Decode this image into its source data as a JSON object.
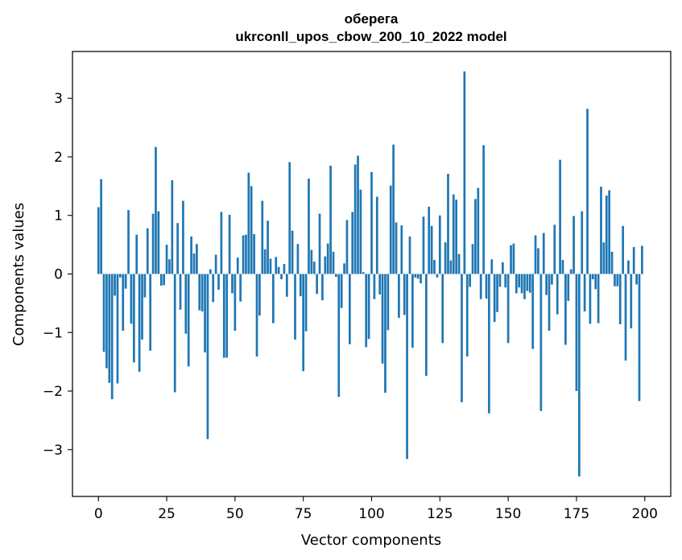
{
  "chart_data": {
    "type": "bar",
    "title": "оберега",
    "subtitle": "ukrconll_upos_cbow_200_10_2022 model",
    "xlabel": "Vector components",
    "ylabel": "Components values",
    "xlim": [
      -9.5,
      209.5
    ],
    "ylim": [
      -3.8,
      3.8
    ],
    "xticks": [
      0,
      25,
      50,
      75,
      100,
      125,
      150,
      175,
      200
    ],
    "yticks": [
      -3,
      -2,
      -1,
      0,
      1,
      2,
      3
    ],
    "ytick_labels": [
      "−3",
      "−2",
      "−1",
      "0",
      "1",
      "2",
      "3"
    ],
    "bar_color": "#1f77b4",
    "x": [
      0,
      1,
      2,
      3,
      4,
      5,
      6,
      7,
      8,
      9,
      10,
      11,
      12,
      13,
      14,
      15,
      16,
      17,
      18,
      19,
      20,
      21,
      22,
      23,
      24,
      25,
      26,
      27,
      28,
      29,
      30,
      31,
      32,
      33,
      34,
      35,
      36,
      37,
      38,
      39,
      40,
      41,
      42,
      43,
      44,
      45,
      46,
      47,
      48,
      49,
      50,
      51,
      52,
      53,
      54,
      55,
      56,
      57,
      58,
      59,
      60,
      61,
      62,
      63,
      64,
      65,
      66,
      67,
      68,
      69,
      70,
      71,
      72,
      73,
      74,
      75,
      76,
      77,
      78,
      79,
      80,
      81,
      82,
      83,
      84,
      85,
      86,
      87,
      88,
      89,
      90,
      91,
      92,
      93,
      94,
      95,
      96,
      97,
      98,
      99,
      100,
      101,
      102,
      103,
      104,
      105,
      106,
      107,
      108,
      109,
      110,
      111,
      112,
      113,
      114,
      115,
      116,
      117,
      118,
      119,
      120,
      121,
      122,
      123,
      124,
      125,
      126,
      127,
      128,
      129,
      130,
      131,
      132,
      133,
      134,
      135,
      136,
      137,
      138,
      139,
      140,
      141,
      142,
      143,
      144,
      145,
      146,
      147,
      148,
      149,
      150,
      151,
      152,
      153,
      154,
      155,
      156,
      157,
      158,
      159,
      160,
      161,
      162,
      163,
      164,
      165,
      166,
      167,
      168,
      169,
      170,
      171,
      172,
      173,
      174,
      175,
      176,
      177,
      178,
      179,
      180,
      181,
      182,
      183,
      184,
      185,
      186,
      187,
      188,
      189,
      190,
      191,
      192,
      193,
      194,
      195,
      196,
      197,
      198,
      199
    ],
    "values": [
      1.14,
      1.62,
      -1.33,
      -1.61,
      -1.86,
      -2.14,
      -0.37,
      -1.87,
      -0.06,
      -0.97,
      -0.25,
      1.09,
      -0.85,
      -1.51,
      0.67,
      -1.67,
      -1.12,
      -0.4,
      0.78,
      -1.31,
      1.03,
      2.17,
      1.07,
      -0.2,
      -0.19,
      0.5,
      0.25,
      1.6,
      -2.02,
      0.87,
      -0.61,
      1.25,
      -1.02,
      -1.58,
      0.64,
      0.35,
      0.51,
      -0.62,
      -0.64,
      -1.34,
      -2.82,
      0.08,
      -0.48,
      0.33,
      -0.27,
      1.06,
      -1.43,
      -1.43,
      1.01,
      -0.33,
      -0.97,
      0.28,
      -0.47,
      0.66,
      0.67,
      1.73,
      1.5,
      0.68,
      -1.41,
      -0.71,
      1.25,
      0.42,
      0.91,
      0.26,
      -0.84,
      0.29,
      0.12,
      -0.09,
      0.17,
      -0.39,
      1.91,
      0.74,
      -1.12,
      0.51,
      -0.38,
      -1.66,
      -0.98,
      1.63,
      0.41,
      0.21,
      -0.34,
      1.03,
      -0.45,
      0.3,
      0.52,
      1.85,
      0.38,
      -0.05,
      -2.1,
      -0.58,
      0.18,
      0.92,
      -1.2,
      1.06,
      1.87,
      2.02,
      1.44,
      0.03,
      -1.25,
      -1.11,
      1.74,
      -0.43,
      1.32,
      -0.35,
      -1.53,
      -2.03,
      -0.96,
      1.51,
      2.21,
      0.88,
      -0.75,
      0.83,
      -0.7,
      -3.16,
      0.64,
      -1.26,
      -0.06,
      -0.08,
      -0.16,
      0.98,
      -1.74,
      1.15,
      0.82,
      0.24,
      -0.06,
      1.0,
      -1.18,
      0.54,
      1.71,
      0.23,
      1.36,
      1.27,
      0.34,
      -2.19,
      3.46,
      -1.41,
      -0.22,
      0.51,
      1.28,
      1.47,
      -0.43,
      2.2,
      -0.42,
      -2.38,
      0.25,
      -0.82,
      -0.65,
      -0.22,
      0.2,
      -0.23,
      -1.18,
      0.49,
      0.52,
      -0.33,
      -0.23,
      -0.33,
      -0.43,
      -0.29,
      -0.32,
      -1.28,
      0.66,
      0.44,
      -2.34,
      0.7,
      -0.36,
      -0.97,
      -0.18,
      0.84,
      -0.69,
      1.95,
      0.24,
      -1.21,
      -0.46,
      0.08,
      0.99,
      -2.0,
      -3.46,
      1.07,
      -0.64,
      2.82,
      -0.85,
      -0.09,
      -0.26,
      -0.84,
      1.49,
      0.54,
      1.34,
      1.43,
      0.38,
      -0.21,
      -0.21,
      -0.86,
      0.82,
      -1.48,
      0.23,
      -0.93,
      0.46,
      -0.18,
      -2.17,
      0.48
    ]
  }
}
